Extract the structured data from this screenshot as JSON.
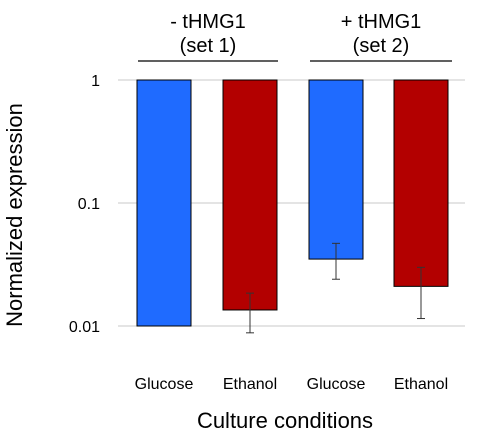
{
  "chart_data": {
    "type": "bar",
    "xlabel": "Culture conditions",
    "ylabel": "Normalized expression",
    "yscale": "log",
    "ylim": [
      0.01,
      1
    ],
    "yticks": [
      {
        "value": 0.01,
        "label": "0.01"
      },
      {
        "value": 0.1,
        "label": "0.1"
      },
      {
        "value": 1,
        "label": "1"
      }
    ],
    "grid": true,
    "categories": [
      "Glucose",
      "Ethanol",
      "Glucose",
      "Ethanol"
    ],
    "values": [
      1,
      1,
      1,
      1
    ],
    "bar_values": [
      1,
      1,
      0.035,
      0.021
    ],
    "bar_bottoms": [
      0.01,
      0.0135,
      1,
      1
    ],
    "error_low": [
      null,
      0.0088,
      0.024,
      0.0115
    ],
    "error_high": [
      null,
      0.0185,
      0.047,
      0.03
    ],
    "bar_colors": [
      "#1f6bff",
      "#b30000",
      "#1f6bff",
      "#b30000"
    ],
    "groups": [
      {
        "line1": "- tHMG1",
        "line2": "(set 1)",
        "bars": [
          0,
          1
        ]
      },
      {
        "line1": "+ tHMG1",
        "line2": "(set 2)",
        "bars": [
          2,
          3
        ]
      }
    ]
  }
}
